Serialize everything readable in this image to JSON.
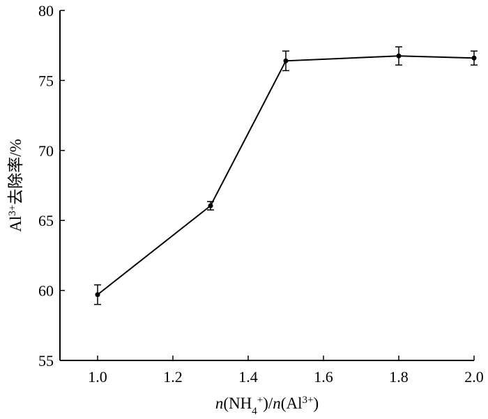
{
  "chart_data": {
    "type": "line",
    "xlabel": {
      "parts": [
        {
          "text": "n",
          "style": "italic"
        },
        {
          "text": "(NH"
        },
        {
          "text": "4",
          "shift": "sub"
        },
        {
          "text": "+",
          "shift": "super"
        },
        {
          "text": ")/"
        },
        {
          "text": "n",
          "style": "italic"
        },
        {
          "text": "(Al"
        },
        {
          "text": "3+",
          "shift": "super"
        },
        {
          "text": ")"
        }
      ]
    },
    "ylabel": {
      "parts": [
        {
          "text": "Al"
        },
        {
          "text": "3+",
          "shift": "super"
        },
        {
          "text": "去除率/%"
        }
      ]
    },
    "xlim": [
      0.9,
      2.0
    ],
    "ylim": [
      55,
      80
    ],
    "xticks": [
      1.0,
      1.2,
      1.4,
      1.6,
      1.8,
      2.0
    ],
    "yticks": [
      55,
      60,
      65,
      70,
      75,
      80
    ],
    "tick_format": {
      "x_decimals": 1,
      "y_decimals": 0
    },
    "grid": false,
    "legend": "none",
    "series": [
      {
        "x": [
          1.0,
          1.3,
          1.5,
          1.8,
          2.0
        ],
        "y": [
          59.7,
          66.05,
          76.4,
          76.75,
          76.6
        ],
        "error": [
          0.7,
          0.3,
          0.7,
          0.65,
          0.5
        ],
        "color": "#000000",
        "marker": "circle"
      }
    ]
  }
}
